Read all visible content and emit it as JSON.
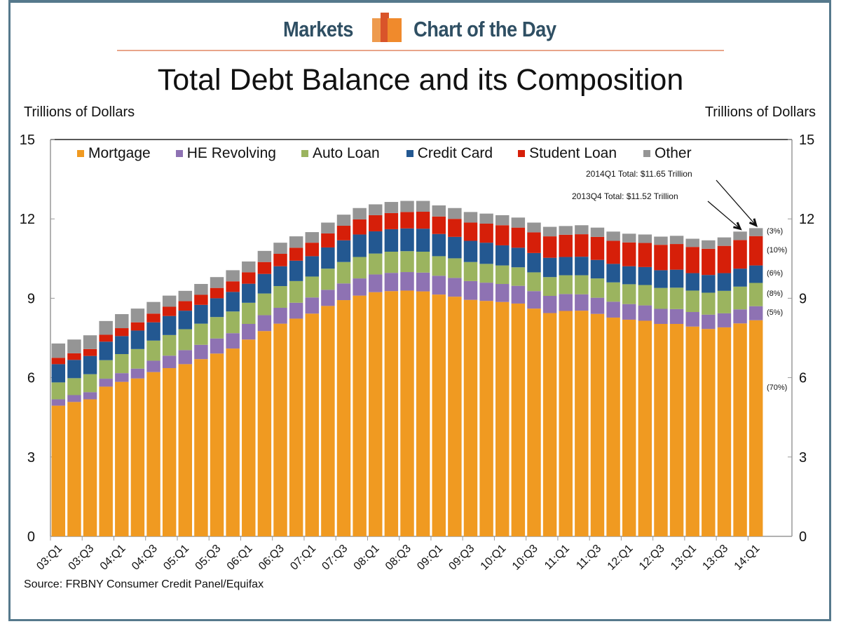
{
  "header": {
    "brand_left": "Markets",
    "brand_right": "Chart of the Day",
    "logo_icon": "bar-chart-logo-icon",
    "brand_text_color": "#2f4f63",
    "logo_colors": [
      "#ee9a4d",
      "#d9542a",
      "#f08a2c"
    ]
  },
  "chart_data": {
    "type": "bar",
    "stacked": true,
    "title": "Total Debt Balance and its Composition",
    "ylabel_left": "Trillions of Dollars",
    "ylabel_right": "Trillions of Dollars",
    "xlabel": "",
    "ylim": [
      0,
      15
    ],
    "yticks": [
      0,
      3,
      6,
      9,
      12,
      15
    ],
    "grid": false,
    "legend_position": "top",
    "categories": [
      "03:Q1",
      "03:Q2",
      "03:Q3",
      "03:Q4",
      "04:Q1",
      "04:Q2",
      "04:Q3",
      "04:Q4",
      "05:Q1",
      "05:Q2",
      "05:Q3",
      "05:Q4",
      "06:Q1",
      "06:Q2",
      "06:Q3",
      "06:Q4",
      "07:Q1",
      "07:Q2",
      "07:Q3",
      "07:Q4",
      "08:Q1",
      "08:Q2",
      "08:Q3",
      "08:Q4",
      "09:Q1",
      "09:Q2",
      "09:Q3",
      "09:Q4",
      "10:Q1",
      "10:Q2",
      "10:Q3",
      "10:Q4",
      "11:Q1",
      "11:Q2",
      "11:Q3",
      "11:Q4",
      "12:Q1",
      "12:Q2",
      "12:Q3",
      "12:Q4",
      "13:Q1",
      "13:Q2",
      "13:Q3",
      "13:Q4",
      "14:Q1"
    ],
    "xtick_labels": [
      "03:Q1",
      "03:Q3",
      "04:Q1",
      "04:Q3",
      "05:Q1",
      "05:Q3",
      "06:Q1",
      "06:Q3",
      "07:Q1",
      "07:Q3",
      "08:Q1",
      "08:Q3",
      "09:Q1",
      "09:Q3",
      "10:Q1",
      "10:Q3",
      "11:Q1",
      "11:Q3",
      "12:Q1",
      "12:Q3",
      "13:Q1",
      "13:Q3",
      "14:Q1"
    ],
    "series": [
      {
        "name": "Mortgage",
        "color": "#f09a21",
        "values": [
          4.94,
          5.08,
          5.18,
          5.66,
          5.84,
          5.97,
          6.21,
          6.36,
          6.51,
          6.7,
          6.91,
          7.1,
          7.44,
          7.76,
          8.04,
          8.23,
          8.42,
          8.71,
          8.93,
          9.1,
          9.23,
          9.27,
          9.29,
          9.26,
          9.14,
          9.06,
          8.94,
          8.9,
          8.86,
          8.8,
          8.61,
          8.44,
          8.52,
          8.53,
          8.41,
          8.27,
          8.19,
          8.15,
          8.03,
          8.03,
          7.93,
          7.84,
          7.9,
          8.05,
          8.17
        ]
      },
      {
        "name": "HE Revolving",
        "color": "#8e72b3",
        "values": [
          0.24,
          0.26,
          0.27,
          0.3,
          0.33,
          0.37,
          0.43,
          0.47,
          0.53,
          0.54,
          0.57,
          0.58,
          0.59,
          0.6,
          0.6,
          0.6,
          0.61,
          0.61,
          0.63,
          0.65,
          0.67,
          0.69,
          0.7,
          0.71,
          0.71,
          0.71,
          0.71,
          0.69,
          0.68,
          0.67,
          0.66,
          0.65,
          0.64,
          0.62,
          0.61,
          0.6,
          0.59,
          0.58,
          0.57,
          0.56,
          0.55,
          0.54,
          0.53,
          0.53,
          0.53
        ]
      },
      {
        "name": "Auto Loan",
        "color": "#9bb45f",
        "values": [
          0.64,
          0.64,
          0.68,
          0.7,
          0.72,
          0.74,
          0.76,
          0.78,
          0.79,
          0.8,
          0.81,
          0.82,
          0.8,
          0.82,
          0.82,
          0.82,
          0.79,
          0.8,
          0.81,
          0.81,
          0.79,
          0.8,
          0.79,
          0.79,
          0.74,
          0.74,
          0.72,
          0.71,
          0.7,
          0.7,
          0.71,
          0.71,
          0.71,
          0.72,
          0.73,
          0.73,
          0.75,
          0.77,
          0.79,
          0.81,
          0.81,
          0.83,
          0.85,
          0.86,
          0.88
        ]
      },
      {
        "name": "Credit Card",
        "color": "#235891",
        "values": [
          0.69,
          0.69,
          0.69,
          0.7,
          0.68,
          0.7,
          0.69,
          0.72,
          0.7,
          0.71,
          0.71,
          0.74,
          0.72,
          0.74,
          0.75,
          0.77,
          0.77,
          0.8,
          0.82,
          0.85,
          0.84,
          0.85,
          0.86,
          0.87,
          0.84,
          0.81,
          0.8,
          0.8,
          0.76,
          0.74,
          0.73,
          0.73,
          0.69,
          0.7,
          0.7,
          0.7,
          0.68,
          0.68,
          0.67,
          0.68,
          0.66,
          0.67,
          0.67,
          0.68,
          0.66
        ]
      },
      {
        "name": "Student Loan",
        "color": "#d61f09",
        "values": [
          0.24,
          0.25,
          0.26,
          0.26,
          0.3,
          0.31,
          0.33,
          0.35,
          0.36,
          0.38,
          0.39,
          0.4,
          0.43,
          0.45,
          0.47,
          0.49,
          0.51,
          0.53,
          0.55,
          0.57,
          0.61,
          0.61,
          0.62,
          0.64,
          0.66,
          0.68,
          0.69,
          0.72,
          0.76,
          0.76,
          0.78,
          0.81,
          0.84,
          0.85,
          0.87,
          0.87,
          0.9,
          0.91,
          0.96,
          0.97,
          0.99,
          0.99,
          1.03,
          1.08,
          1.11
        ]
      },
      {
        "name": "Other",
        "color": "#959595",
        "values": [
          0.54,
          0.52,
          0.52,
          0.52,
          0.53,
          0.52,
          0.44,
          0.42,
          0.39,
          0.41,
          0.41,
          0.42,
          0.41,
          0.42,
          0.42,
          0.43,
          0.4,
          0.41,
          0.42,
          0.43,
          0.41,
          0.42,
          0.42,
          0.41,
          0.42,
          0.41,
          0.4,
          0.38,
          0.38,
          0.38,
          0.37,
          0.36,
          0.33,
          0.34,
          0.35,
          0.35,
          0.33,
          0.32,
          0.31,
          0.31,
          0.31,
          0.32,
          0.32,
          0.32,
          0.3
        ]
      }
    ],
    "annotations": [
      {
        "text": "2014Q1 Total: $11.65 Trillion",
        "target": "14:Q1"
      },
      {
        "text": "2013Q4 Total: $11.52 Trillion",
        "target": "13:Q4"
      }
    ],
    "composition_labels": [
      {
        "series": "Other",
        "text": "(3%)"
      },
      {
        "series": "Student Loan",
        "text": "(10%)"
      },
      {
        "series": "Credit Card",
        "text": "(6%)"
      },
      {
        "series": "Auto Loan",
        "text": "(8%)"
      },
      {
        "series": "HE Revolving",
        "text": "(5%)"
      },
      {
        "series": "Mortgage",
        "text": "(70%)"
      }
    ],
    "source": "Source: FRBNY Consumer Credit Panel/Equifax"
  }
}
